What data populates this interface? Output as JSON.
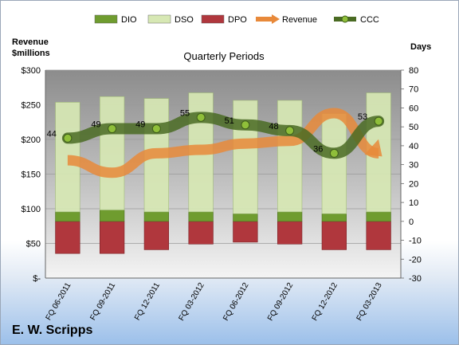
{
  "chart_data": {
    "type": "bar",
    "title": "Quarterly Periods",
    "categories": [
      "FQ 06-2011",
      "FQ 09-2011",
      "FQ 12-2011",
      "FQ 03-2012",
      "FQ 06-2012",
      "FQ 09-2012",
      "FQ 12-2012",
      "FQ 03-2013"
    ],
    "left_axis": {
      "label": "Revenue $millions",
      "ylim": [
        0,
        300
      ],
      "ticks": [
        "$-",
        "$50",
        "$100",
        "$150",
        "$200",
        "$250",
        "$300"
      ],
      "tick_values": [
        0,
        50,
        100,
        150,
        200,
        250,
        300
      ]
    },
    "right_axis": {
      "label": "Days",
      "ylim": [
        -30,
        80
      ],
      "ticks": [
        "-30",
        "-20",
        "-10",
        "0",
        "10",
        "20",
        "30",
        "40",
        "50",
        "60",
        "70",
        "80"
      ],
      "tick_values": [
        -30,
        -20,
        -10,
        0,
        10,
        20,
        30,
        40,
        50,
        60,
        70,
        80
      ]
    },
    "series": [
      {
        "name": "DIO",
        "axis": "right",
        "kind": "stacked-bar",
        "color": "#6f9c2f",
        "values": [
          5,
          6,
          5,
          5,
          4,
          5,
          4,
          5
        ]
      },
      {
        "name": "DSO",
        "axis": "right",
        "kind": "stacked-bar",
        "color": "#d7e8b4",
        "values": [
          58,
          60,
          60,
          63,
          60,
          59,
          53,
          63
        ]
      },
      {
        "name": "DPO",
        "axis": "right",
        "kind": "negative-bar",
        "color": "#b0373d",
        "values": [
          -17,
          -17,
          -15,
          -12,
          -11,
          -12,
          -15,
          -15
        ]
      },
      {
        "name": "Revenue",
        "axis": "left",
        "kind": "arrow-line",
        "color": "#e8893a",
        "values": [
          170,
          152,
          180,
          185,
          194,
          198,
          238,
          180
        ]
      },
      {
        "name": "CCC",
        "axis": "right",
        "kind": "line-markers",
        "color": "#4a6b23",
        "values": [
          44,
          49,
          49,
          55,
          51,
          48,
          36,
          53
        ]
      }
    ],
    "ccc_labels": [
      "44",
      "49",
      "49",
      "55",
      "51",
      "48",
      "36",
      "53"
    ],
    "legend": {
      "placement": "top",
      "items": [
        "DIO",
        "DSO",
        "DPO",
        "Revenue",
        "CCC"
      ]
    },
    "grid": true
  },
  "company": "E. W. Scripps"
}
